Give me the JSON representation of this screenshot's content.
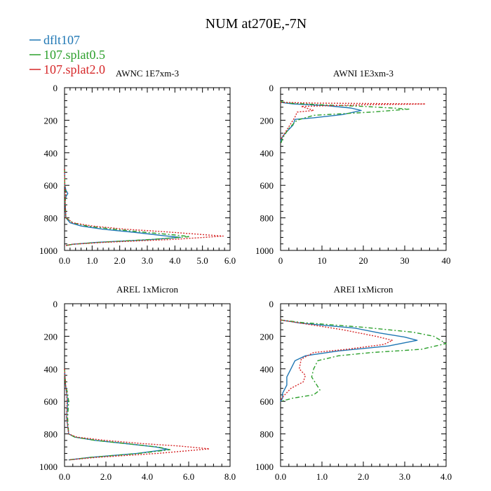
{
  "title": "NUM at270E,-7N",
  "legend": [
    {
      "name": "dflt107",
      "color": "#1f77b4",
      "dash": "solid"
    },
    {
      "name": "107.splat0.5",
      "color": "#2ca02c",
      "dash": "dashdot"
    },
    {
      "name": "107.splat2.0",
      "color": "#d62728",
      "dash": "dotted"
    }
  ],
  "chart_data": [
    {
      "type": "line",
      "title": "AWNC  1E7xm-3",
      "xlim": [
        0,
        6
      ],
      "xticks": [
        0,
        1,
        2,
        3,
        4,
        5,
        6
      ],
      "xtick_labels": [
        "0.0",
        "1.0",
        "2.0",
        "3.0",
        "4.0",
        "5.0",
        "6.0"
      ],
      "ylim": [
        0,
        1000
      ],
      "yticks": [
        0,
        200,
        400,
        600,
        800,
        1000
      ],
      "ytick_labels": [
        "0",
        "200",
        "400",
        "600",
        "800",
        "1000"
      ],
      "series": [
        {
          "name": "dflt107",
          "x": [
            0,
            0.01,
            0.05,
            0.12,
            0.05,
            0.02,
            0.05,
            0.2,
            0.6,
            1.4,
            2.6,
            3.6,
            4.2,
            3.0,
            1.2,
            0.3,
            0.05
          ],
          "y": [
            500,
            600,
            630,
            650,
            670,
            700,
            800,
            830,
            850,
            870,
            890,
            910,
            920,
            935,
            950,
            962,
            970
          ]
        },
        {
          "name": "107.splat0.5",
          "x": [
            0,
            0.01,
            0.03,
            0.06,
            0.03,
            0.02,
            0.05,
            0.3,
            0.8,
            1.8,
            3.0,
            4.0,
            4.55,
            3.2,
            1.3,
            0.3,
            0.05
          ],
          "y": [
            500,
            600,
            630,
            650,
            670,
            700,
            800,
            830,
            850,
            870,
            890,
            905,
            915,
            932,
            950,
            962,
            970
          ]
        },
        {
          "name": "107.splat2.0",
          "x": [
            0,
            0.01,
            0.03,
            0.05,
            0.03,
            0.02,
            0.05,
            0.3,
            1.0,
            2.2,
            3.6,
            4.8,
            5.75,
            4.0,
            1.5,
            0.3,
            0.05
          ],
          "y": [
            500,
            600,
            630,
            650,
            670,
            700,
            800,
            830,
            850,
            870,
            885,
            900,
            912,
            932,
            950,
            962,
            970
          ]
        }
      ]
    },
    {
      "type": "line",
      "title": "AWNI  1E3xm-3",
      "xlim": [
        0,
        40
      ],
      "xticks": [
        0,
        10,
        20,
        30,
        40
      ],
      "xtick_labels": [
        "0",
        "10",
        "20",
        "30",
        "40"
      ],
      "ylim": [
        0,
        1000
      ],
      "yticks": [
        0,
        200,
        400,
        600,
        800,
        1000
      ],
      "ytick_labels": [
        "0",
        "200",
        "400",
        "600",
        "800",
        "1000"
      ],
      "series": [
        {
          "name": "dflt107",
          "x": [
            0,
            3,
            11,
            17,
            19.5,
            15,
            8,
            3.5,
            3,
            1.5,
            0.5,
            0
          ],
          "y": [
            90,
            100,
            110,
            125,
            140,
            165,
            185,
            195,
            230,
            270,
            300,
            330
          ]
        },
        {
          "name": "107.splat0.5",
          "x": [
            0,
            2,
            10,
            20,
            27,
            31,
            22,
            8,
            4,
            2,
            0.5,
            0
          ],
          "y": [
            85,
            95,
            105,
            115,
            125,
            132,
            150,
            170,
            200,
            250,
            310,
            350
          ]
        },
        {
          "name": "107.splat2.0",
          "x": [
            0,
            8,
            25,
            35,
            20,
            5,
            8,
            4,
            3.5,
            2,
            0.5,
            0
          ],
          "y": [
            90,
            95,
            98,
            100,
            105,
            115,
            140,
            150,
            180,
            240,
            300,
            320
          ]
        }
      ]
    },
    {
      "type": "line",
      "title": "AREL  1xMicron",
      "xlim": [
        0,
        8
      ],
      "xticks": [
        0,
        2,
        4,
        6,
        8
      ],
      "xtick_labels": [
        "0.0",
        "2.0",
        "4.0",
        "6.0",
        "8.0"
      ],
      "ylim": [
        0,
        1000
      ],
      "yticks": [
        0,
        200,
        400,
        600,
        800,
        1000
      ],
      "ytick_labels": [
        "0",
        "200",
        "400",
        "600",
        "800",
        "1000"
      ],
      "series": [
        {
          "name": "dflt107",
          "x": [
            0,
            0.05,
            0.1,
            0.15,
            0.1,
            0.2,
            0.5,
            1.5,
            3.0,
            4.4,
            5.0,
            3.5,
            1.2,
            0.2
          ],
          "y": [
            400,
            500,
            550,
            600,
            700,
            800,
            820,
            840,
            860,
            880,
            895,
            920,
            945,
            960
          ]
        },
        {
          "name": "107.splat0.5",
          "x": [
            0,
            0.05,
            0.15,
            0.2,
            0.15,
            0.2,
            0.5,
            1.5,
            3.0,
            4.5,
            5.1,
            3.6,
            1.2,
            0.2
          ],
          "y": [
            400,
            500,
            550,
            600,
            700,
            800,
            820,
            840,
            860,
            880,
            897,
            920,
            945,
            960
          ]
        },
        {
          "name": "107.splat2.0",
          "x": [
            0,
            0.05,
            0.1,
            0.12,
            0.1,
            0.2,
            0.6,
            2.0,
            3.8,
            5.6,
            7.0,
            4.5,
            1.5,
            0.2
          ],
          "y": [
            400,
            500,
            550,
            600,
            700,
            800,
            820,
            840,
            860,
            875,
            892,
            920,
            945,
            960
          ]
        }
      ]
    },
    {
      "type": "line",
      "title": "AREI  1xMicron",
      "xlim": [
        0,
        4
      ],
      "xticks": [
        0,
        1,
        2,
        3,
        4
      ],
      "xtick_labels": [
        "0.0",
        "1.0",
        "2.0",
        "3.0",
        "4.0"
      ],
      "ylim": [
        0,
        1000
      ],
      "yticks": [
        0,
        200,
        400,
        600,
        800,
        1000
      ],
      "ytick_labels": [
        "0",
        "200",
        "400",
        "600",
        "800",
        "1000"
      ],
      "series": [
        {
          "name": "dflt107",
          "x": [
            0,
            0.5,
            1.8,
            2.4,
            3.0,
            3.3,
            2.6,
            1.4,
            0.6,
            0.35,
            0.25,
            0.15,
            0.15,
            0.05,
            0.05,
            0
          ],
          "y": [
            100,
            120,
            150,
            180,
            205,
            225,
            260,
            290,
            320,
            350,
            400,
            450,
            500,
            550,
            580,
            600
          ]
        },
        {
          "name": "107.splat0.5",
          "x": [
            0,
            0.5,
            2.0,
            3.2,
            3.7,
            4.0,
            3.4,
            2.2,
            1.4,
            0.9,
            0.8,
            0.75,
            0.95,
            0.8,
            0.3,
            0
          ],
          "y": [
            100,
            115,
            145,
            175,
            200,
            245,
            280,
            300,
            320,
            350,
            400,
            450,
            530,
            560,
            580,
            600
          ]
        },
        {
          "name": "107.splat2.0",
          "x": [
            0,
            0.5,
            1.5,
            2.3,
            2.7,
            2.5,
            1.6,
            0.8,
            0.5,
            0.45,
            0.6,
            0.55,
            0.25,
            0.1,
            0
          ],
          "y": [
            100,
            120,
            160,
            200,
            225,
            250,
            280,
            300,
            340,
            400,
            440,
            480,
            520,
            560,
            590
          ]
        }
      ]
    }
  ]
}
